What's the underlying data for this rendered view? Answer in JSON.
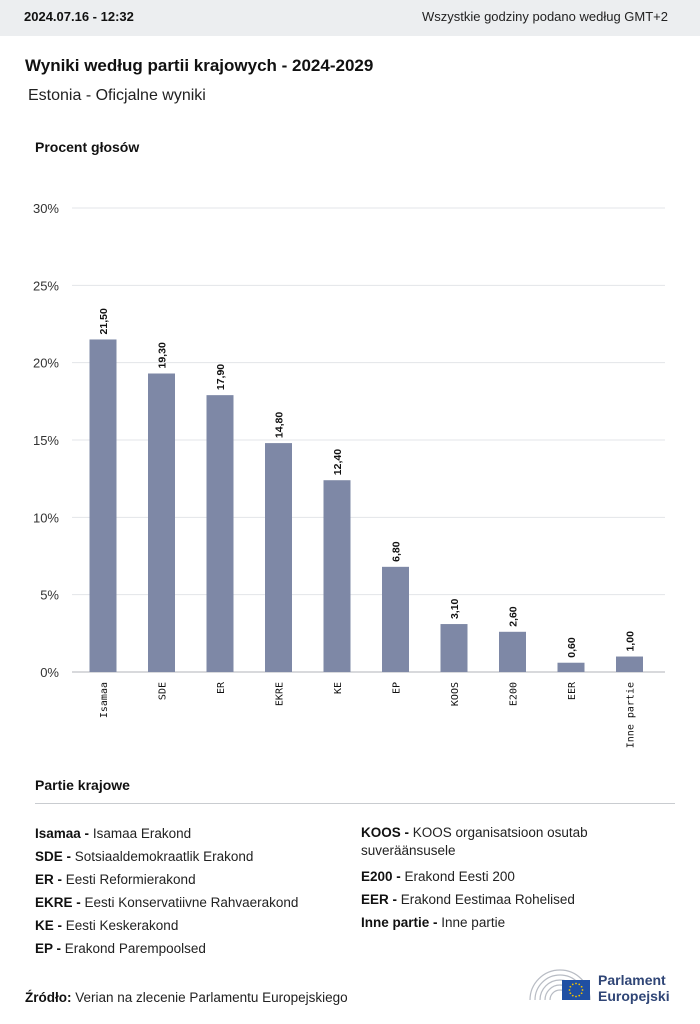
{
  "header": {
    "date": "2024.07.16 - 12:32",
    "timezone_note": "Wszystkie godziny podano według GMT+2"
  },
  "title": "Wyniki według partii krajowych - 2024-2029",
  "subtitle": "Estonia - Oficjalne wyniki",
  "chart_data": {
    "type": "bar",
    "ylabel": "Procent głosów",
    "categories": [
      "Isamaa",
      "SDE",
      "ER",
      "EKRE",
      "KE",
      "EP",
      "KOOS",
      "E200",
      "EER",
      "Inne partie"
    ],
    "values": [
      21.5,
      19.3,
      17.9,
      14.8,
      12.4,
      6.8,
      3.1,
      2.6,
      0.6,
      1.0
    ],
    "value_labels": [
      "21,50",
      "19,30",
      "17,90",
      "14,80",
      "12,40",
      "6,80",
      "3,10",
      "2,60",
      "0,60",
      "1,00"
    ],
    "ylim": [
      0,
      30
    ],
    "yticks": [
      "0%",
      "5%",
      "10%",
      "15%",
      "20%",
      "25%",
      "30%"
    ],
    "bar_color": "#7e88a6",
    "grid": true
  },
  "legend": {
    "heading": "Partie krajowe",
    "left": [
      {
        "abbr": "Isamaa -",
        "name": "Isamaa Erakond"
      },
      {
        "abbr": "SDE -",
        "name": "Sotsiaaldemokraatlik Erakond"
      },
      {
        "abbr": "ER -",
        "name": "Eesti Reformierakond"
      },
      {
        "abbr": "EKRE -",
        "name": "Eesti Konservatiivne Rahvaerakond"
      },
      {
        "abbr": "KE -",
        "name": "Eesti Keskerakond"
      },
      {
        "abbr": "EP -",
        "name": "Erakond Parempoolsed"
      }
    ],
    "right": [
      {
        "abbr": "KOOS -",
        "name": "KOOS organisatsioon osutab suveräänsusele"
      },
      {
        "abbr": "E200 -",
        "name": "Erakond Eesti 200"
      },
      {
        "abbr": "EER -",
        "name": "Erakond Eestimaa Rohelised"
      },
      {
        "abbr": "Inne partie -",
        "name": "Inne partie"
      }
    ]
  },
  "source": {
    "label": "Źródło:",
    "text": "Verian na zlecenie Parlamentu Europejskiego"
  },
  "logo": {
    "line1": "Parlament",
    "line2": "Europejski",
    "brand_color": "#2f4576",
    "flag_color": "#1f4fa3",
    "star_color": "#f2c200"
  }
}
